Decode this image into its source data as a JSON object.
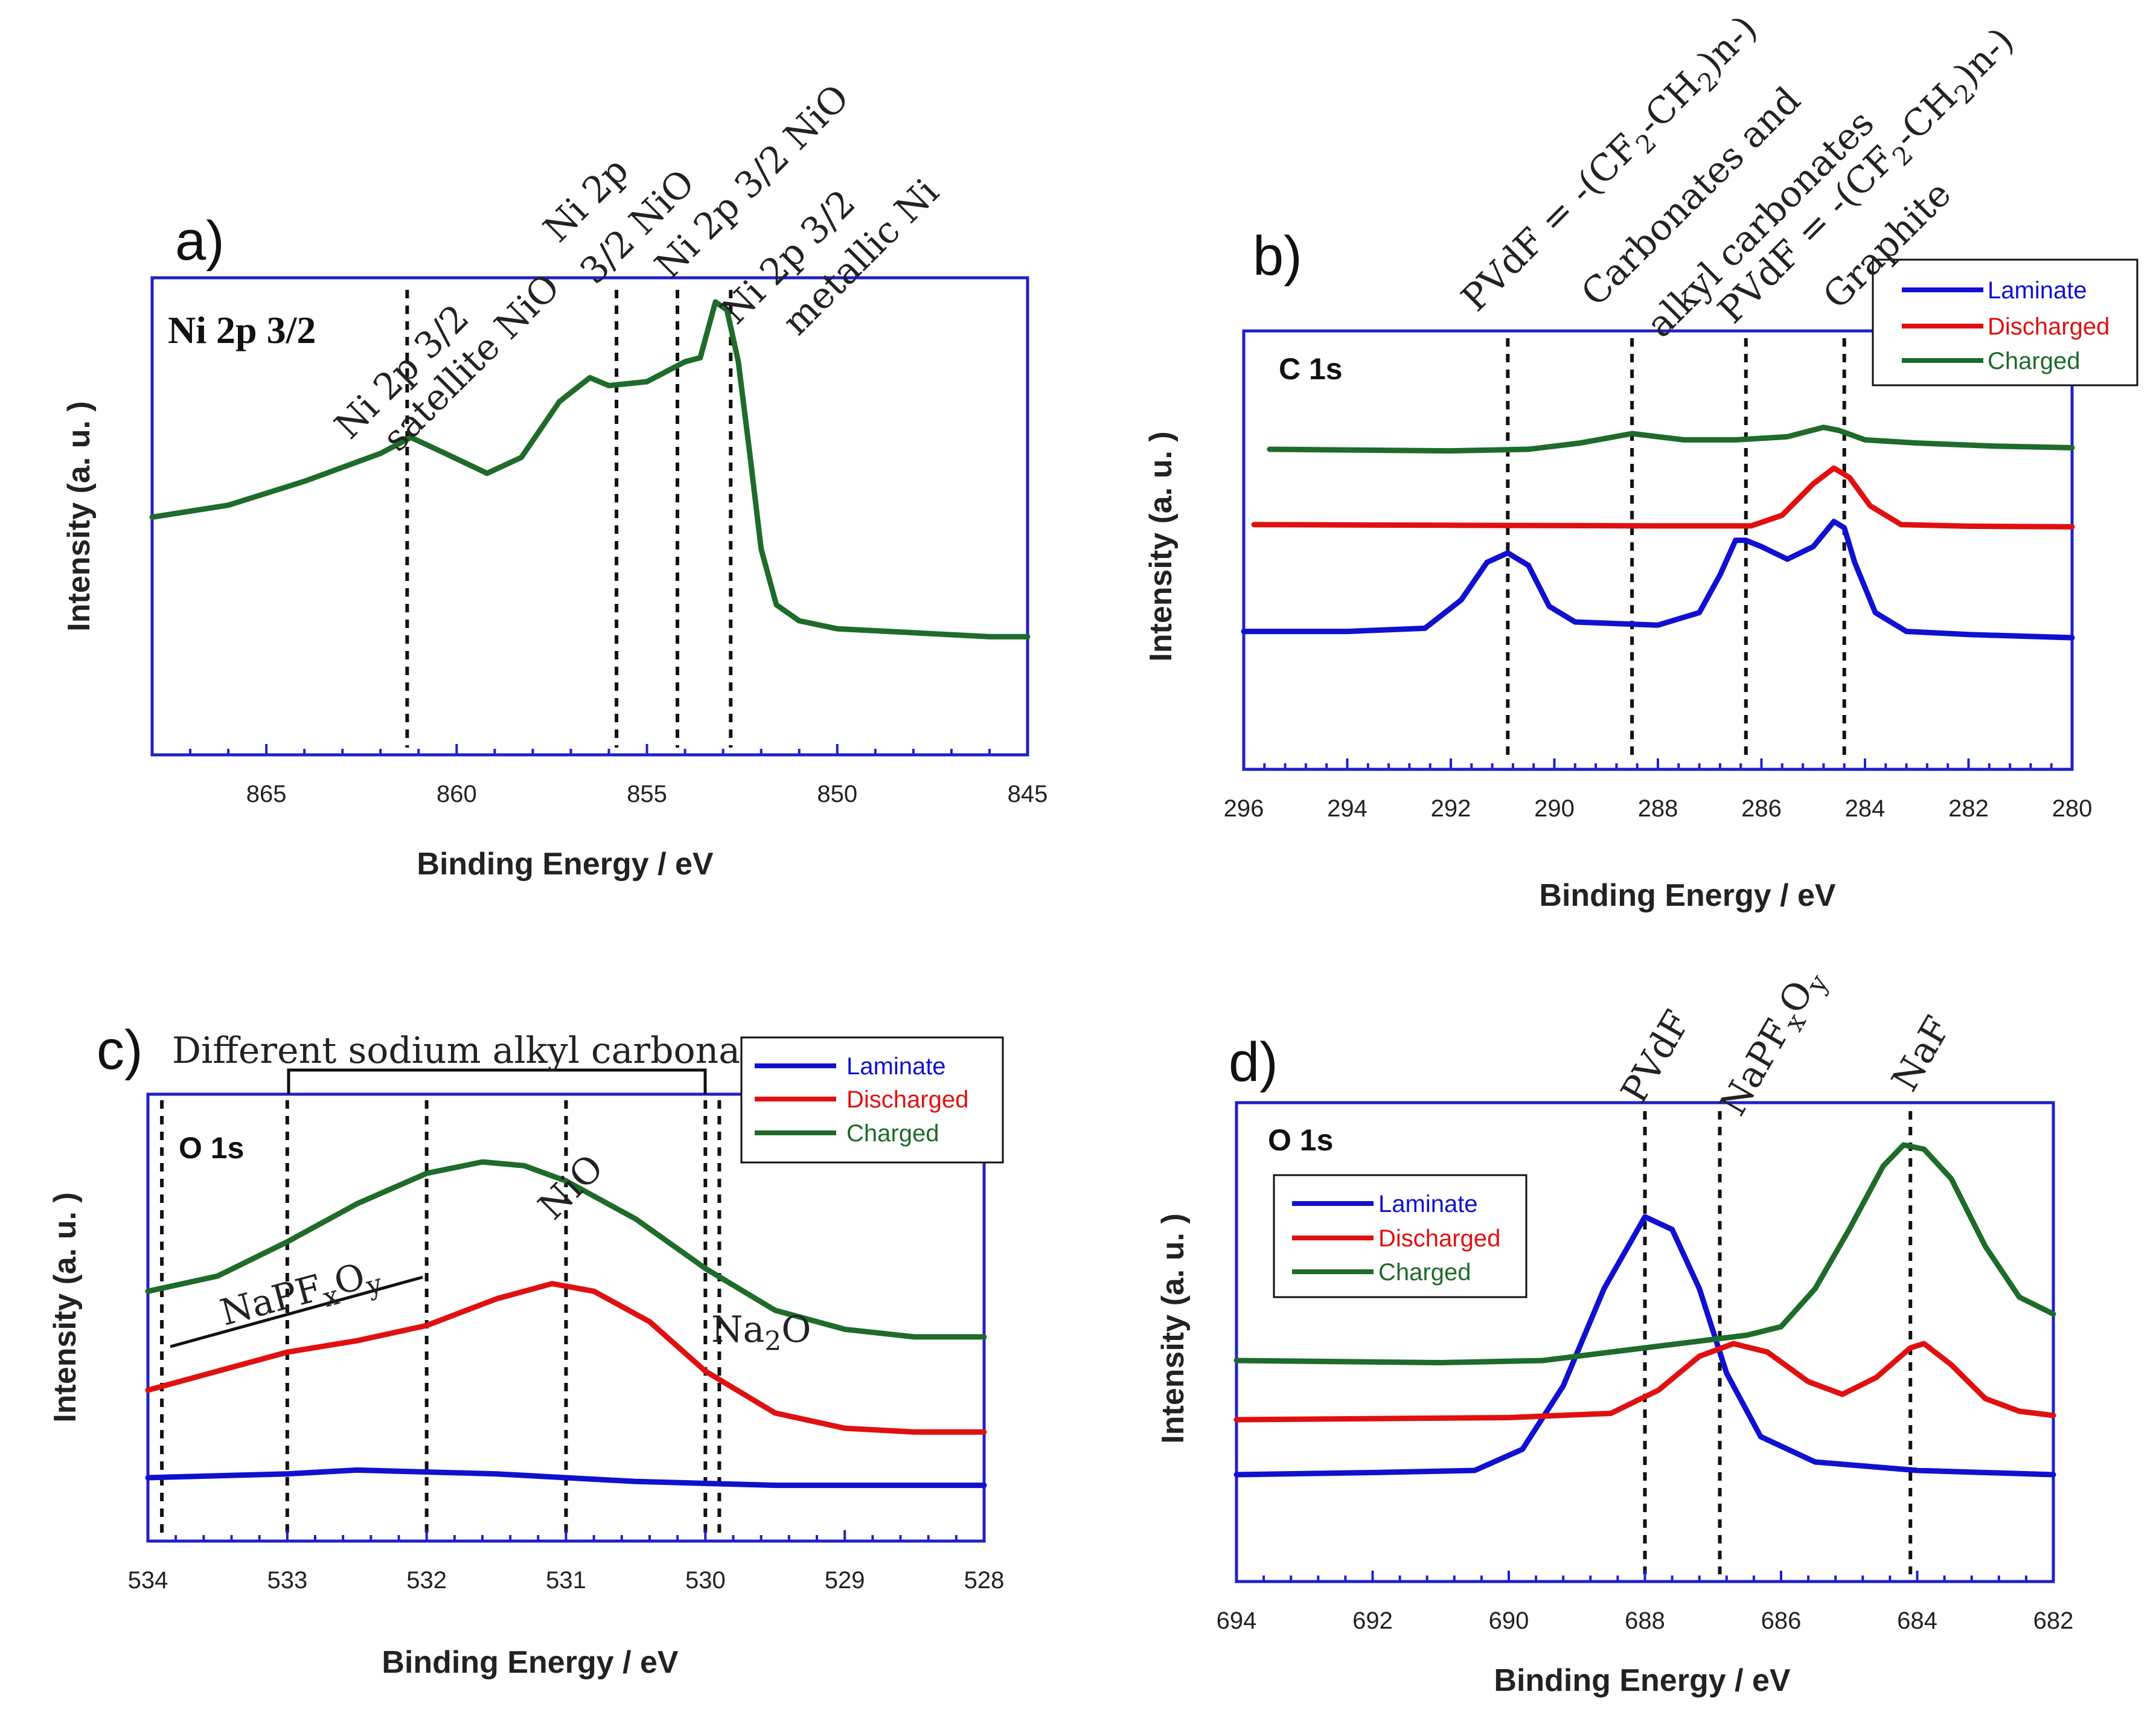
{
  "chart_data": [
    {
      "id": "a",
      "panel_label": "a)",
      "type": "line",
      "title": "Ni 2p 3/2",
      "xlabel": "Binding Energy / eV",
      "ylabel": "Intensity (a. u. )",
      "xlim": [
        868,
        845
      ],
      "ylim": [
        0,
        100
      ],
      "xticks": [
        865,
        860,
        855,
        850,
        845
      ],
      "series": [
        {
          "name": "Ni 2p 3/2",
          "color": "#1e6b2a",
          "points": [
            [
              868,
              46
            ],
            [
              866,
              49
            ],
            [
              864,
              55
            ],
            [
              862,
              62
            ],
            [
              861.2,
              66
            ],
            [
              860.3,
              62
            ],
            [
              859.2,
              57
            ],
            [
              858.3,
              61
            ],
            [
              857.3,
              75
            ],
            [
              856.5,
              81
            ],
            [
              856,
              79
            ],
            [
              855,
              80
            ],
            [
              854,
              85
            ],
            [
              853.6,
              86
            ],
            [
              853.2,
              100
            ],
            [
              852.9,
              98
            ],
            [
              852.6,
              85
            ],
            [
              852.3,
              62
            ],
            [
              852,
              38
            ],
            [
              851.6,
              24
            ],
            [
              851,
              20
            ],
            [
              850,
              18
            ],
            [
              848,
              17
            ],
            [
              846,
              16
            ],
            [
              845,
              16
            ]
          ]
        }
      ],
      "vlines": [
        861.3,
        855.8,
        854.2,
        852.8
      ],
      "annotations": [
        "Ni 2p 3/2",
        "satellite NiO",
        "Ni 2p",
        "3/2 NiO",
        "Ni 2p 3/2 NiO",
        "Ni 2p 3/2",
        "metallic Ni"
      ]
    },
    {
      "id": "b",
      "panel_label": "b)",
      "type": "line",
      "title": "C 1s",
      "xlabel": "Binding Energy / eV",
      "ylabel": "Intensity (a. u. )",
      "xlim": [
        296,
        280
      ],
      "ylim": [
        0,
        100
      ],
      "xticks": [
        296,
        294,
        292,
        290,
        288,
        286,
        284,
        282,
        280
      ],
      "legend": {
        "position": "top-right",
        "entries": [
          {
            "label": "Laminate",
            "color": "#1010d0"
          },
          {
            "label": "Discharged",
            "color": "#e01010"
          },
          {
            "label": "Charged",
            "color": "#1e6b2a"
          }
        ]
      },
      "series": [
        {
          "name": "Laminate",
          "color": "#1010d0",
          "points": [
            [
              296,
              22
            ],
            [
              294,
              22
            ],
            [
              292.5,
              23
            ],
            [
              291.8,
              32
            ],
            [
              291.3,
              44
            ],
            [
              290.9,
              47
            ],
            [
              290.5,
              43
            ],
            [
              290.1,
              30
            ],
            [
              289.6,
              25
            ],
            [
              288,
              24
            ],
            [
              287.2,
              28
            ],
            [
              286.8,
              40
            ],
            [
              286.5,
              51
            ],
            [
              286.3,
              51
            ],
            [
              286,
              49
            ],
            [
              285.5,
              45
            ],
            [
              285,
              49
            ],
            [
              284.6,
              57
            ],
            [
              284.4,
              55
            ],
            [
              284.2,
              44
            ],
            [
              283.8,
              28
            ],
            [
              283.2,
              22
            ],
            [
              282,
              21
            ],
            [
              280,
              20
            ]
          ]
        },
        {
          "name": "Discharged",
          "color": "#e01010",
          "points": [
            [
              295.8,
              56
            ],
            [
              292,
              55.8
            ],
            [
              288,
              55.6
            ],
            [
              286.2,
              55.6
            ],
            [
              285.6,
              59
            ],
            [
              285,
              69
            ],
            [
              284.6,
              74
            ],
            [
              284.3,
              71
            ],
            [
              283.9,
              62
            ],
            [
              283.3,
              56
            ],
            [
              282,
              55.5
            ],
            [
              280,
              55.3
            ]
          ]
        },
        {
          "name": "Charged",
          "color": "#1e6b2a",
          "points": [
            [
              295.5,
              80
            ],
            [
              292,
              79.5
            ],
            [
              290.5,
              80
            ],
            [
              289.5,
              82
            ],
            [
              288.5,
              85
            ],
            [
              287.5,
              83
            ],
            [
              286.5,
              83
            ],
            [
              285.5,
              84
            ],
            [
              284.8,
              87
            ],
            [
              284.5,
              86
            ],
            [
              284,
              83
            ],
            [
              283,
              82
            ],
            [
              281.5,
              81
            ],
            [
              280,
              80.5
            ]
          ]
        }
      ],
      "vlines": [
        290.9,
        288.5,
        286.3,
        284.4
      ],
      "annotations": [
        "PVdF = -(CF",
        "2",
        "-CH",
        "2",
        ")n-)",
        "Carbonates and",
        "alkyl carbonates",
        "PVdF = -(CF",
        "2",
        "-CH",
        "2",
        ")n-)",
        "Graphite"
      ]
    },
    {
      "id": "c",
      "panel_label": "c)",
      "type": "line",
      "title": "O 1s",
      "xlabel": "Binding Energy / eV",
      "ylabel": "Intensity (a. u. )",
      "xlim": [
        534,
        528
      ],
      "ylim": [
        0,
        100
      ],
      "xticks": [
        534,
        533,
        532,
        531,
        530,
        529,
        528
      ],
      "legend": {
        "position": "top-right",
        "entries": [
          {
            "label": "Laminate",
            "color": "#1010d0"
          },
          {
            "label": "Discharged",
            "color": "#e01010"
          },
          {
            "label": "Charged",
            "color": "#1e6b2a"
          }
        ]
      },
      "series": [
        {
          "name": "Laminate",
          "color": "#1010d0",
          "points": [
            [
              534,
              10
            ],
            [
              533,
              11
            ],
            [
              532.5,
              12
            ],
            [
              531.5,
              11
            ],
            [
              530.5,
              9
            ],
            [
              529.5,
              8
            ],
            [
              528,
              8
            ]
          ]
        },
        {
          "name": "Discharged",
          "color": "#e01010",
          "points": [
            [
              534,
              33
            ],
            [
              533.5,
              38
            ],
            [
              533,
              43
            ],
            [
              532.5,
              46
            ],
            [
              532,
              50
            ],
            [
              531.5,
              57
            ],
            [
              531.1,
              61
            ],
            [
              530.8,
              59
            ],
            [
              530.4,
              51
            ],
            [
              530,
              38
            ],
            [
              529.5,
              27
            ],
            [
              529,
              23
            ],
            [
              528.5,
              22
            ],
            [
              528,
              22
            ]
          ]
        },
        {
          "name": "Charged",
          "color": "#1e6b2a",
          "points": [
            [
              534,
              59
            ],
            [
              533.5,
              63
            ],
            [
              533,
              72
            ],
            [
              532.5,
              82
            ],
            [
              532,
              90
            ],
            [
              531.6,
              93
            ],
            [
              531.3,
              92
            ],
            [
              531,
              88
            ],
            [
              530.5,
              78
            ],
            [
              530,
              65
            ],
            [
              529.5,
              54
            ],
            [
              529,
              49
            ],
            [
              528.5,
              47
            ],
            [
              528,
              47
            ]
          ]
        }
      ],
      "vlines": [
        533.9,
        533.0,
        532.0,
        531.0,
        530.0,
        529.9
      ],
      "annotations": [
        "Different sodium alkyl carbonates",
        "NaPF",
        "x",
        "O",
        "y",
        "NiO",
        "Na",
        "2",
        "O"
      ]
    },
    {
      "id": "d",
      "panel_label": "d)",
      "type": "line",
      "title": "O 1s",
      "xlabel": "Binding Energy / eV",
      "ylabel": "Intensity (a. u. )",
      "xlim": [
        694,
        682
      ],
      "ylim": [
        0,
        100
      ],
      "xticks": [
        694,
        692,
        690,
        688,
        686,
        684,
        682
      ],
      "legend": {
        "position": "top-left",
        "entries": [
          {
            "label": "Laminate",
            "color": "#1010d0"
          },
          {
            "label": "Discharged",
            "color": "#e01010"
          },
          {
            "label": "Charged",
            "color": "#1e6b2a"
          }
        ]
      },
      "series": [
        {
          "name": "Laminate",
          "color": "#1010d0",
          "points": [
            [
              694,
              14
            ],
            [
              692,
              14.5
            ],
            [
              690.5,
              15
            ],
            [
              689.8,
              20
            ],
            [
              689.2,
              35
            ],
            [
              688.6,
              58
            ],
            [
              688,
              75
            ],
            [
              687.6,
              72
            ],
            [
              687.2,
              58
            ],
            [
              686.8,
              38
            ],
            [
              686.3,
              23
            ],
            [
              685.5,
              17
            ],
            [
              684,
              15
            ],
            [
              682,
              14
            ]
          ]
        },
        {
          "name": "Discharged",
          "color": "#e01010",
          "points": [
            [
              694,
              27
            ],
            [
              690,
              27.5
            ],
            [
              688.5,
              28.5
            ],
            [
              687.8,
              34
            ],
            [
              687.2,
              42
            ],
            [
              686.7,
              45
            ],
            [
              686.2,
              43
            ],
            [
              685.6,
              36
            ],
            [
              685.1,
              33
            ],
            [
              684.6,
              37
            ],
            [
              684.1,
              44
            ],
            [
              683.9,
              45
            ],
            [
              683.5,
              40
            ],
            [
              683,
              32
            ],
            [
              682.5,
              29
            ],
            [
              682,
              28
            ]
          ]
        },
        {
          "name": "Charged",
          "color": "#1e6b2a",
          "points": [
            [
              694,
              41
            ],
            [
              691,
              40.5
            ],
            [
              689.5,
              41
            ],
            [
              688.5,
              43
            ],
            [
              687.5,
              45
            ],
            [
              686.5,
              47
            ],
            [
              686,
              49
            ],
            [
              685.5,
              58
            ],
            [
              685,
              72
            ],
            [
              684.5,
              87
            ],
            [
              684.2,
              92
            ],
            [
              683.9,
              91
            ],
            [
              683.5,
              84
            ],
            [
              683,
              68
            ],
            [
              682.5,
              56
            ],
            [
              682,
              52
            ]
          ]
        }
      ],
      "vlines": [
        688.0,
        686.9,
        684.1
      ],
      "annotations": [
        "PVdF",
        "NaPF",
        "x",
        "O",
        "y",
        "NaF"
      ]
    }
  ]
}
